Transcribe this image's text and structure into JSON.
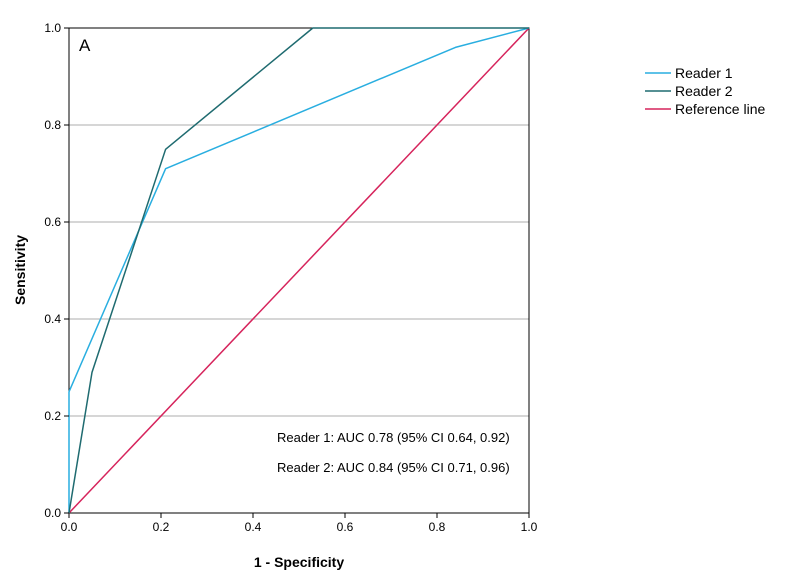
{
  "chart_data": {
    "type": "line",
    "panel_label": "A",
    "xlabel": "1 - Specificity",
    "ylabel": "Sensitivity",
    "xlim": [
      0.0,
      1.0
    ],
    "ylim": [
      0.0,
      1.0
    ],
    "x_ticks": [
      "0.0",
      "0.2",
      "0.4",
      "0.6",
      "0.8",
      "1.0"
    ],
    "y_ticks": [
      "0.0",
      "0.2",
      "0.4",
      "0.6",
      "0.8",
      "1.0"
    ],
    "grid": "horizontal",
    "legend_position": "top-right, outside plot",
    "series": [
      {
        "name": "Reader 1",
        "color": "#29aee0",
        "points": [
          [
            0.0,
            0.0
          ],
          [
            0.0,
            0.25
          ],
          [
            0.21,
            0.71
          ],
          [
            0.84,
            0.96
          ],
          [
            1.0,
            1.0
          ]
        ]
      },
      {
        "name": "Reader 2",
        "color": "#1f6b70",
        "points": [
          [
            0.0,
            0.0
          ],
          [
            0.05,
            0.29
          ],
          [
            0.21,
            0.75
          ],
          [
            0.53,
            1.0
          ],
          [
            1.0,
            1.0
          ]
        ]
      },
      {
        "name": "Reference line",
        "color": "#d6245c",
        "points": [
          [
            0.0,
            0.0
          ],
          [
            1.0,
            1.0
          ]
        ]
      }
    ],
    "annotations": [
      "Reader 1: AUC 0.78 (95% CI 0.64, 0.92)",
      "Reader 2: AUC 0.84 (95% CI 0.71, 0.96)"
    ]
  }
}
